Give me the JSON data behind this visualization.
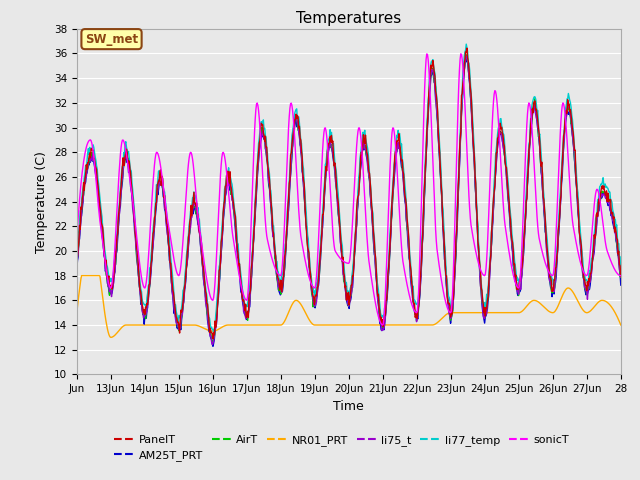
{
  "title": "Temperatures",
  "xlabel": "Time",
  "ylabel": "Temperature (C)",
  "ylim": [
    10,
    38
  ],
  "xlim": [
    0,
    16
  ],
  "fig_bg": "#e8e8e8",
  "plot_bg": "#e8e8e8",
  "grid_color": "#ffffff",
  "x_tick_labels": [
    "Jun",
    "13Jun",
    "14Jun",
    "15Jun",
    "16Jun",
    "17Jun",
    "18Jun",
    "19Jun",
    "20Jun",
    "21Jun",
    "22Jun",
    "23Jun",
    "24Jun",
    "25Jun",
    "26Jun",
    "27Jun",
    "28"
  ],
  "x_tick_positions": [
    0,
    1,
    2,
    3,
    4,
    5,
    6,
    7,
    8,
    9,
    10,
    11,
    12,
    13,
    14,
    15,
    16
  ],
  "y_ticks": [
    10,
    12,
    14,
    16,
    18,
    20,
    22,
    24,
    26,
    28,
    30,
    32,
    34,
    36,
    38
  ],
  "annotation_text": "SW_met",
  "annotation_bg": "#ffffaa",
  "annotation_border": "#8B4513",
  "series_order": [
    "PanelT",
    "AM25T_PRT",
    "AirT",
    "NR01_PRT",
    "li75_t",
    "li77_temp",
    "sonicT"
  ],
  "series": {
    "PanelT": {
      "color": "#cc0000",
      "label": "PanelT"
    },
    "AM25T_PRT": {
      "color": "#0000cc",
      "label": "AM25T_PRT"
    },
    "AirT": {
      "color": "#00cc00",
      "label": "AirT"
    },
    "NR01_PRT": {
      "color": "#ffaa00",
      "label": "NR01_PRT"
    },
    "li75_t": {
      "color": "#9900cc",
      "label": "li75_t"
    },
    "li77_temp": {
      "color": "#00cccc",
      "label": "li77_temp"
    },
    "sonicT": {
      "color": "#ff00ff",
      "label": "sonicT"
    }
  },
  "figsize": [
    6.4,
    4.8
  ],
  "dpi": 100
}
